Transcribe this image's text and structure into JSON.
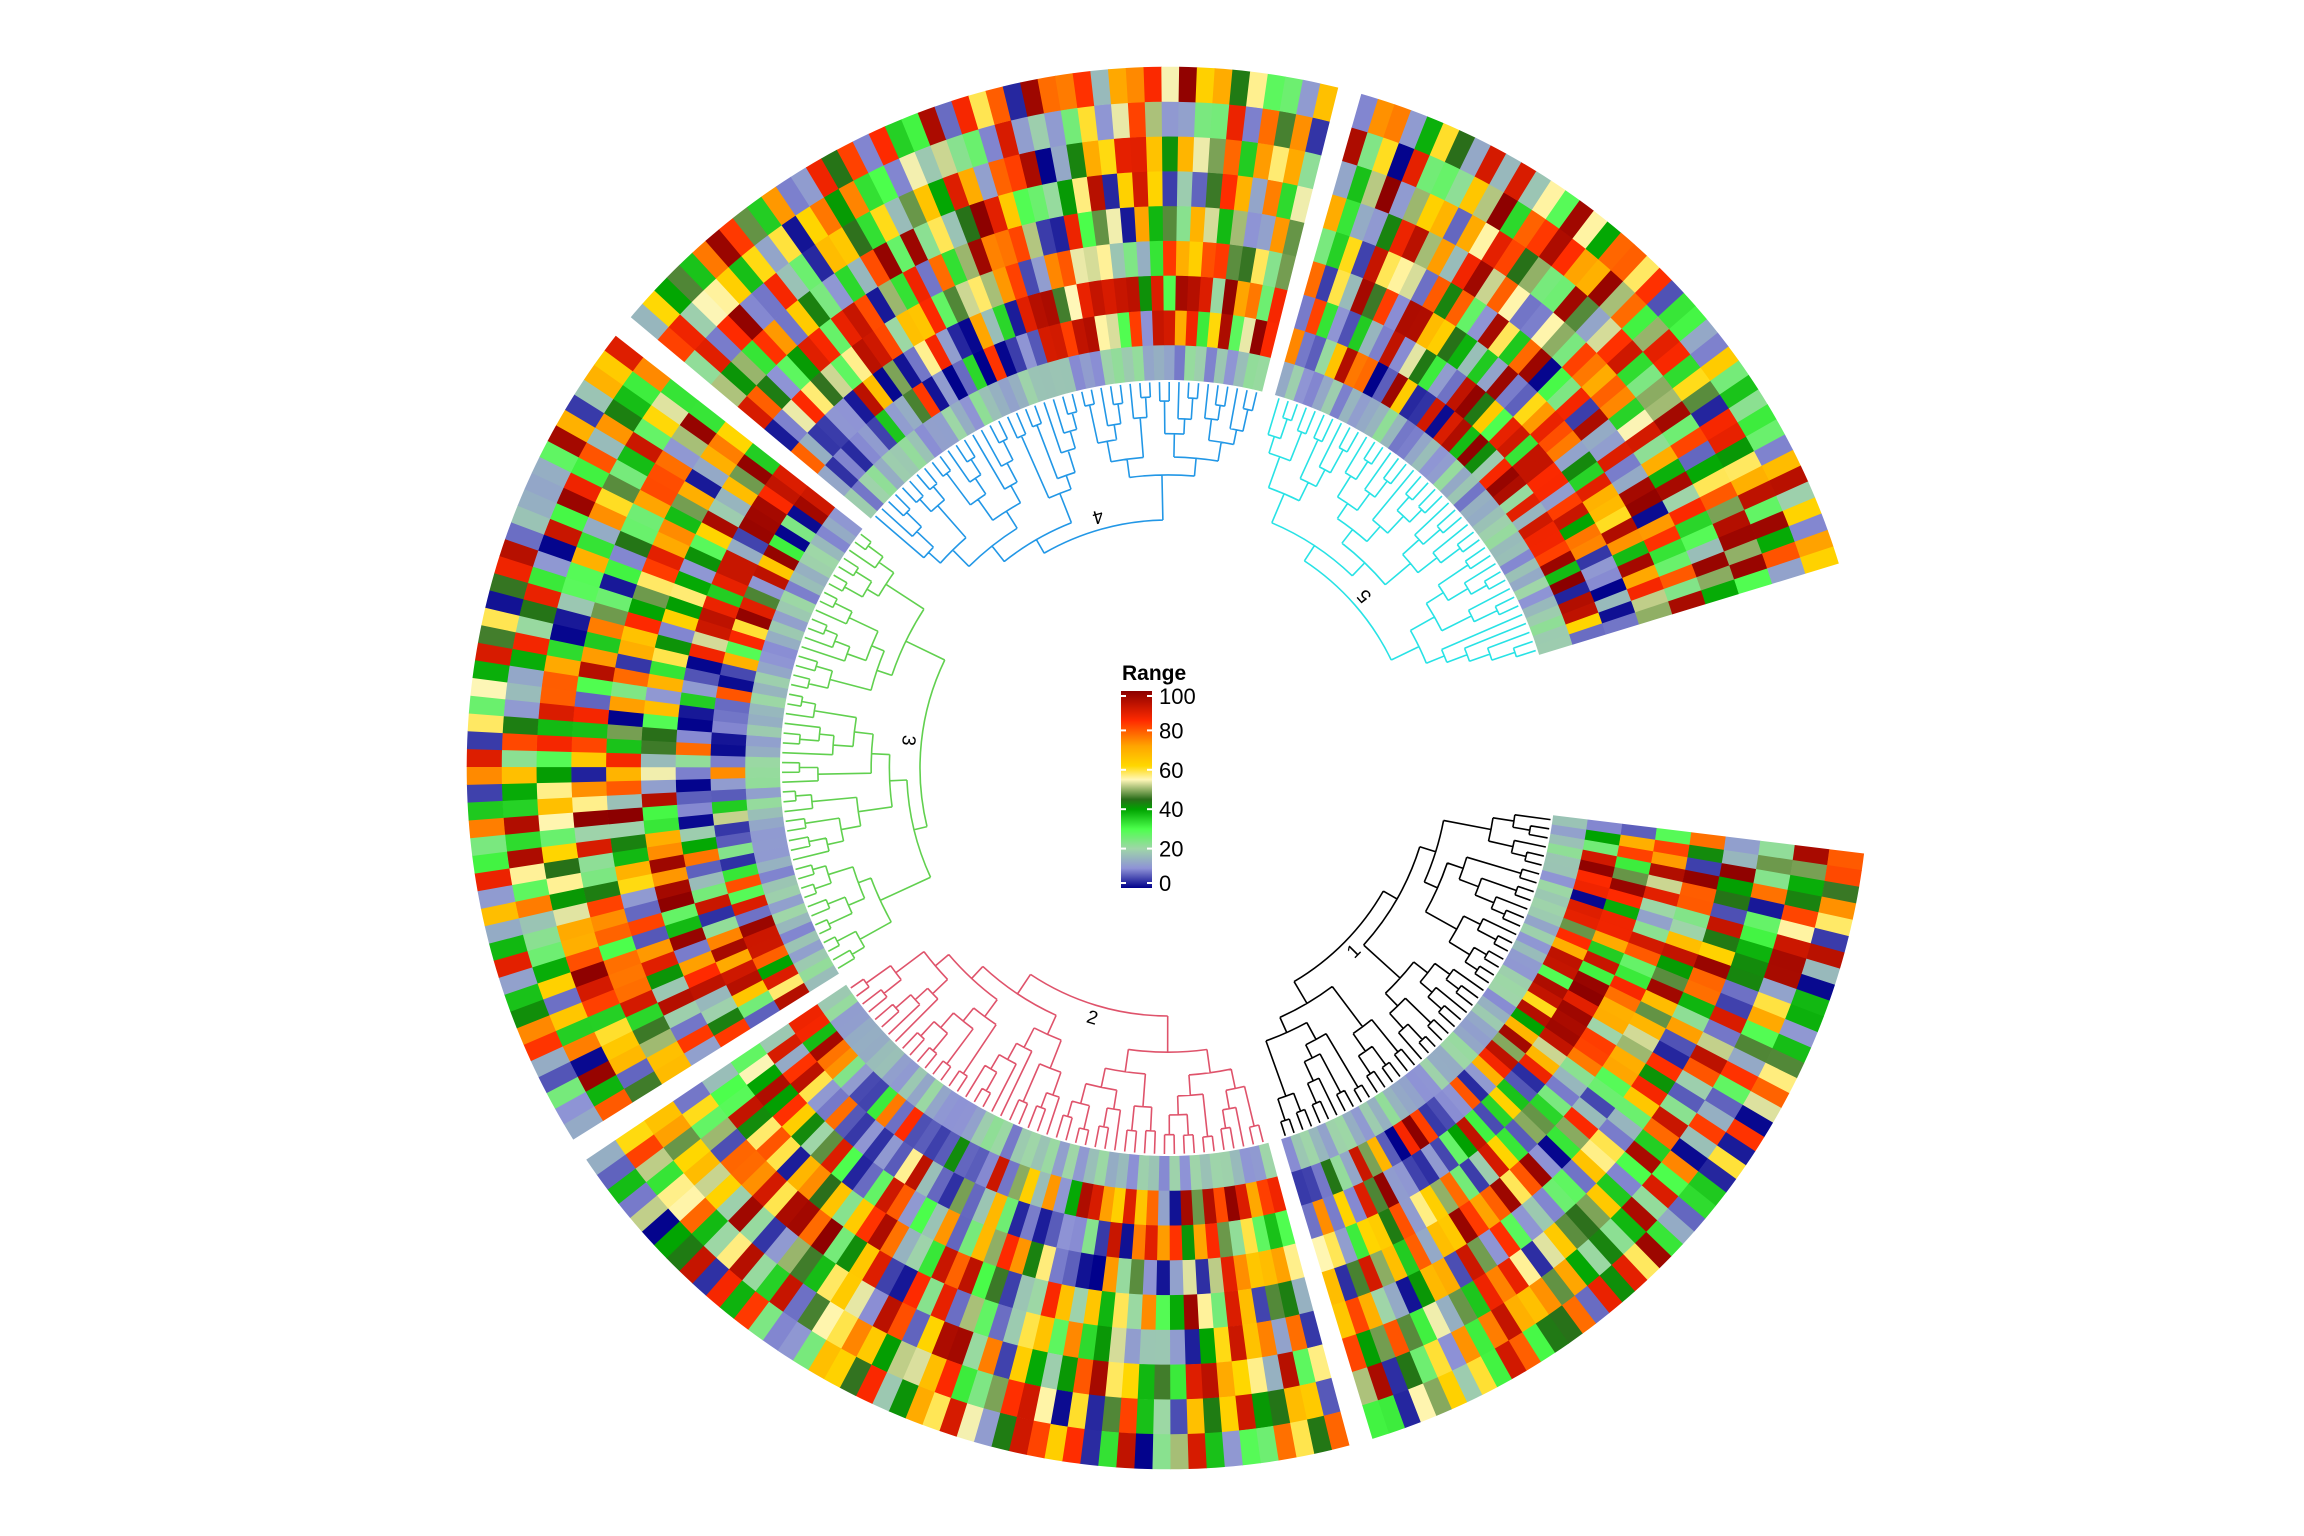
{
  "chart_data": {
    "type": "heatmap",
    "layout": "circular",
    "title": "",
    "legend": {
      "title": "Range",
      "placement": "center",
      "range": [
        0,
        100
      ],
      "ticks": [
        {
          "value": 0,
          "label": "0"
        },
        {
          "value": 20,
          "label": "20"
        },
        {
          "value": 40,
          "label": "40"
        },
        {
          "value": 60,
          "label": "60"
        },
        {
          "value": 80,
          "label": "80"
        },
        {
          "value": 100,
          "label": "100"
        }
      ],
      "color_stops": [
        {
          "value": 0,
          "color": "#00008b"
        },
        {
          "value": 10,
          "color": "#8e92d6"
        },
        {
          "value": 20,
          "color": "#9fd6a8"
        },
        {
          "value": 30,
          "color": "#4cff4c"
        },
        {
          "value": 40,
          "color": "#00a300"
        },
        {
          "value": 45,
          "color": "#2a6e1a"
        },
        {
          "value": 55,
          "color": "#fff7b8"
        },
        {
          "value": 62,
          "color": "#ffd700"
        },
        {
          "value": 72,
          "color": "#ffa500"
        },
        {
          "value": 85,
          "color": "#ff2a00"
        },
        {
          "value": 100,
          "color": "#8b0000"
        }
      ]
    },
    "tracks": 9,
    "sectors": [
      {
        "cluster": "1",
        "columns": 48,
        "dendrogram_color": "#000000"
      },
      {
        "cluster": "2",
        "columns": 48,
        "dendrogram_color": "#df536b"
      },
      {
        "cluster": "3",
        "columns": 48,
        "dendrogram_color": "#61d04f"
      },
      {
        "cluster": "4",
        "columns": 44,
        "dendrogram_color": "#2297e6"
      },
      {
        "cluster": "5",
        "columns": 40,
        "dendrogram_color": "#28e2e5"
      }
    ],
    "values_note": "Cell values are randomized (range 0-100) across 9 concentric tracks per sector"
  }
}
